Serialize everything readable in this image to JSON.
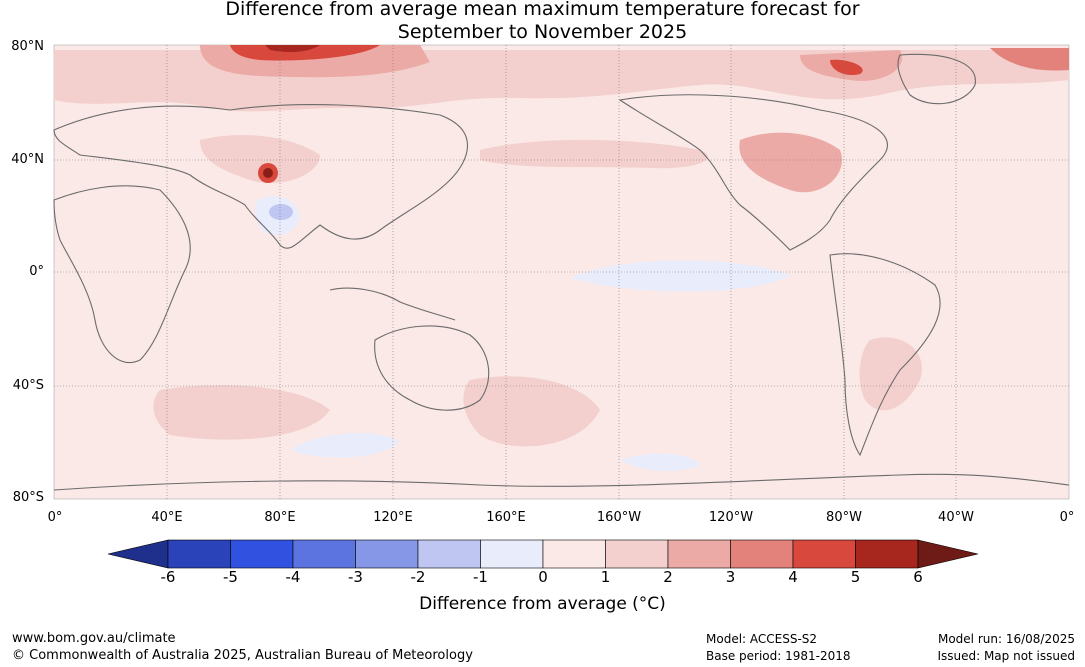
{
  "title": {
    "line1": "Difference from average mean maximum temperature forecast for",
    "line2": "September to November 2025"
  },
  "map": {
    "lat_labels": [
      "80°N",
      "40°N",
      "0°",
      "40°S",
      "80°S"
    ],
    "lon_labels": [
      "0°",
      "40°E",
      "80°E",
      "120°E",
      "160°E",
      "160°W",
      "120°W",
      "80°W",
      "40°W",
      "0°"
    ]
  },
  "colorbar": {
    "ticks": [
      "-6",
      "-5",
      "-4",
      "-3",
      "-2",
      "-1",
      "0",
      "1",
      "2",
      "3",
      "4",
      "5",
      "6"
    ],
    "colors": [
      "#1f2f8c",
      "#2b43b8",
      "#3152e0",
      "#5b74e0",
      "#8797e8",
      "#bfc6f2",
      "#e9ecfb",
      "#fbe9e7",
      "#f3d0cd",
      "#ebaaa5",
      "#e3817b",
      "#d9483c",
      "#a7271f",
      "#6e1a16"
    ],
    "label": "Difference from average (°C)"
  },
  "footer": {
    "url": "www.bom.gov.au/climate",
    "copyright": "© Commonwealth of Australia 2025, Australian Bureau of Meteorology",
    "model": "Model: ACCESS-S2",
    "base_period": "Base period: 1981-2018",
    "model_run": "Model run: 16/08/2025",
    "issued": "Issued: Map not issued"
  }
}
